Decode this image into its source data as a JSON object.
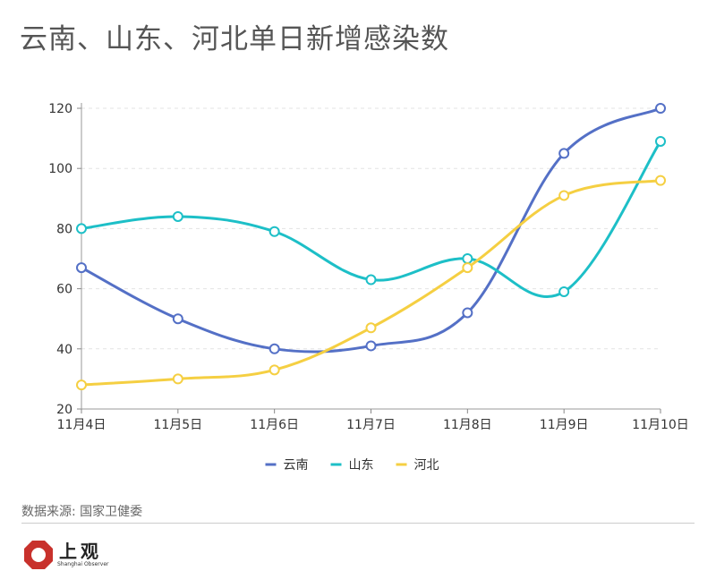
{
  "chart_title": "云南、山东、河北单日新增感染数",
  "source": "数据来源: 国家卫健委",
  "brand": {
    "name": "上观",
    "name_en": "Shanghai Observer",
    "logo_color": "#c8312c"
  },
  "chart_data": {
    "type": "line",
    "title": "云南、山东、河北单日新增感染数",
    "categories": [
      "11月4日",
      "11月5日",
      "11月6日",
      "11月7日",
      "11月8日",
      "11月9日",
      "11月10日"
    ],
    "series": [
      {
        "name": "云南",
        "color": "#5470c6",
        "values": [
          67,
          50,
          40,
          41,
          52,
          105,
          120
        ]
      },
      {
        "name": "山东",
        "color": "#1dbfc7",
        "values": [
          80,
          84,
          79,
          63,
          70,
          59,
          109
        ]
      },
      {
        "name": "河北",
        "color": "#f5cf42",
        "values": [
          28,
          30,
          33,
          47,
          67,
          91,
          96
        ]
      }
    ],
    "ylim": [
      20,
      120
    ],
    "yticks": [
      20,
      40,
      60,
      80,
      100,
      120
    ],
    "xlabel": "",
    "ylabel": "",
    "grid": true,
    "legend": "bottom-center",
    "smooth": true
  }
}
